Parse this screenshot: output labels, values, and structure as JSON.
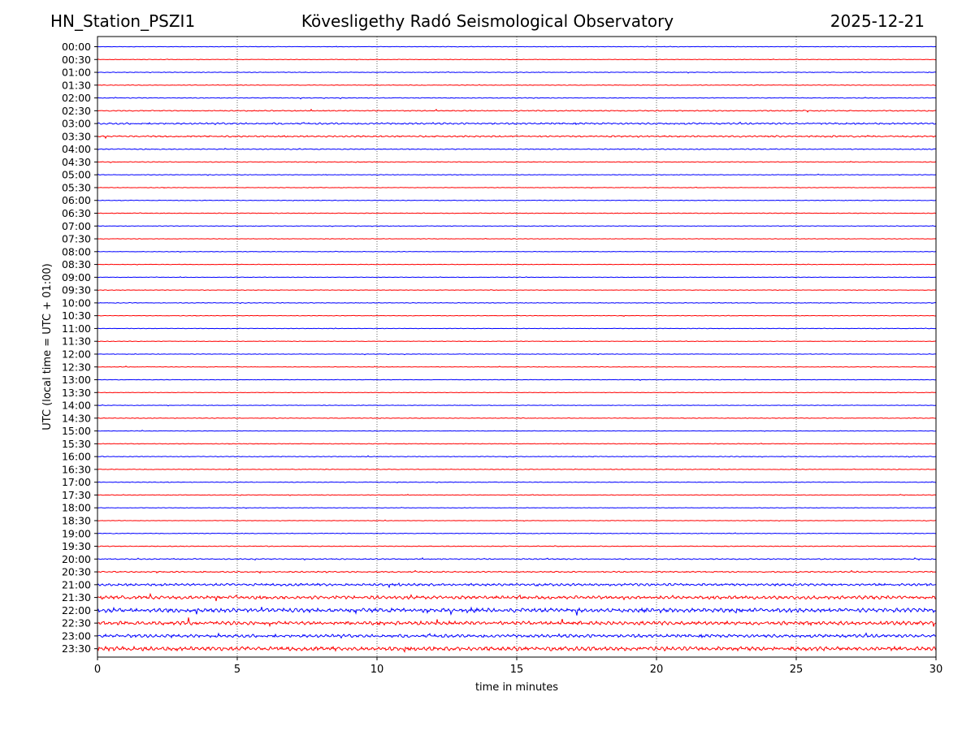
{
  "header": {
    "station": "HN_Station_PSZI1",
    "title": "Kövesligethy Radó Seismological Observatory",
    "date": "2025-12-21"
  },
  "chart_data": {
    "type": "line",
    "title": "Kövesligethy Radó Seismological Observatory",
    "xlabel": "time in minutes",
    "ylabel": "UTC (local time = UTC + 01:00)",
    "xlim": [
      0,
      30
    ],
    "x_ticks": [
      0,
      5,
      10,
      15,
      20,
      25,
      30
    ],
    "grid": "vertical dotted at 5-minute intervals",
    "trace_colors": [
      "#0000ff",
      "#ff0000"
    ],
    "rows": [
      {
        "label": "00:00",
        "amplitude": 0.25
      },
      {
        "label": "00:30",
        "amplitude": 0.25
      },
      {
        "label": "01:00",
        "amplitude": 0.3
      },
      {
        "label": "01:30",
        "amplitude": 0.3
      },
      {
        "label": "02:00",
        "amplitude": 0.35
      },
      {
        "label": "02:30",
        "amplitude": 0.5
      },
      {
        "label": "03:00",
        "amplitude": 0.8
      },
      {
        "label": "03:30",
        "amplitude": 0.75
      },
      {
        "label": "04:00",
        "amplitude": 0.45
      },
      {
        "label": "04:30",
        "amplitude": 0.35
      },
      {
        "label": "05:00",
        "amplitude": 0.3
      },
      {
        "label": "05:30",
        "amplitude": 0.25
      },
      {
        "label": "06:00",
        "amplitude": 0.3
      },
      {
        "label": "06:30",
        "amplitude": 0.3
      },
      {
        "label": "07:00",
        "amplitude": 0.25
      },
      {
        "label": "07:30",
        "amplitude": 0.25
      },
      {
        "label": "08:00",
        "amplitude": 0.25
      },
      {
        "label": "08:30",
        "amplitude": 0.25
      },
      {
        "label": "09:00",
        "amplitude": 0.25
      },
      {
        "label": "09:30",
        "amplitude": 0.25
      },
      {
        "label": "10:00",
        "amplitude": 0.3
      },
      {
        "label": "10:30",
        "amplitude": 0.25
      },
      {
        "label": "11:00",
        "amplitude": 0.25
      },
      {
        "label": "11:30",
        "amplitude": 0.25
      },
      {
        "label": "12:00",
        "amplitude": 0.25
      },
      {
        "label": "12:30",
        "amplitude": 0.25
      },
      {
        "label": "13:00",
        "amplitude": 0.25
      },
      {
        "label": "13:30",
        "amplitude": 0.25
      },
      {
        "label": "14:00",
        "amplitude": 0.25
      },
      {
        "label": "14:30",
        "amplitude": 0.3
      },
      {
        "label": "15:00",
        "amplitude": 0.25
      },
      {
        "label": "15:30",
        "amplitude": 0.3
      },
      {
        "label": "16:00",
        "amplitude": 0.35
      },
      {
        "label": "16:30",
        "amplitude": 0.35
      },
      {
        "label": "17:00",
        "amplitude": 0.3
      },
      {
        "label": "17:30",
        "amplitude": 0.3
      },
      {
        "label": "18:00",
        "amplitude": 0.25
      },
      {
        "label": "18:30",
        "amplitude": 0.25
      },
      {
        "label": "19:00",
        "amplitude": 0.3
      },
      {
        "label": "19:30",
        "amplitude": 0.35
      },
      {
        "label": "20:00",
        "amplitude": 0.5
      },
      {
        "label": "20:30",
        "amplitude": 0.6
      },
      {
        "label": "21:00",
        "amplitude": 1.2
      },
      {
        "label": "21:30",
        "amplitude": 1.6
      },
      {
        "label": "22:00",
        "amplitude": 2.0
      },
      {
        "label": "22:30",
        "amplitude": 1.8
      },
      {
        "label": "23:00",
        "amplitude": 1.5
      },
      {
        "label": "23:30",
        "amplitude": 2.0
      }
    ]
  }
}
